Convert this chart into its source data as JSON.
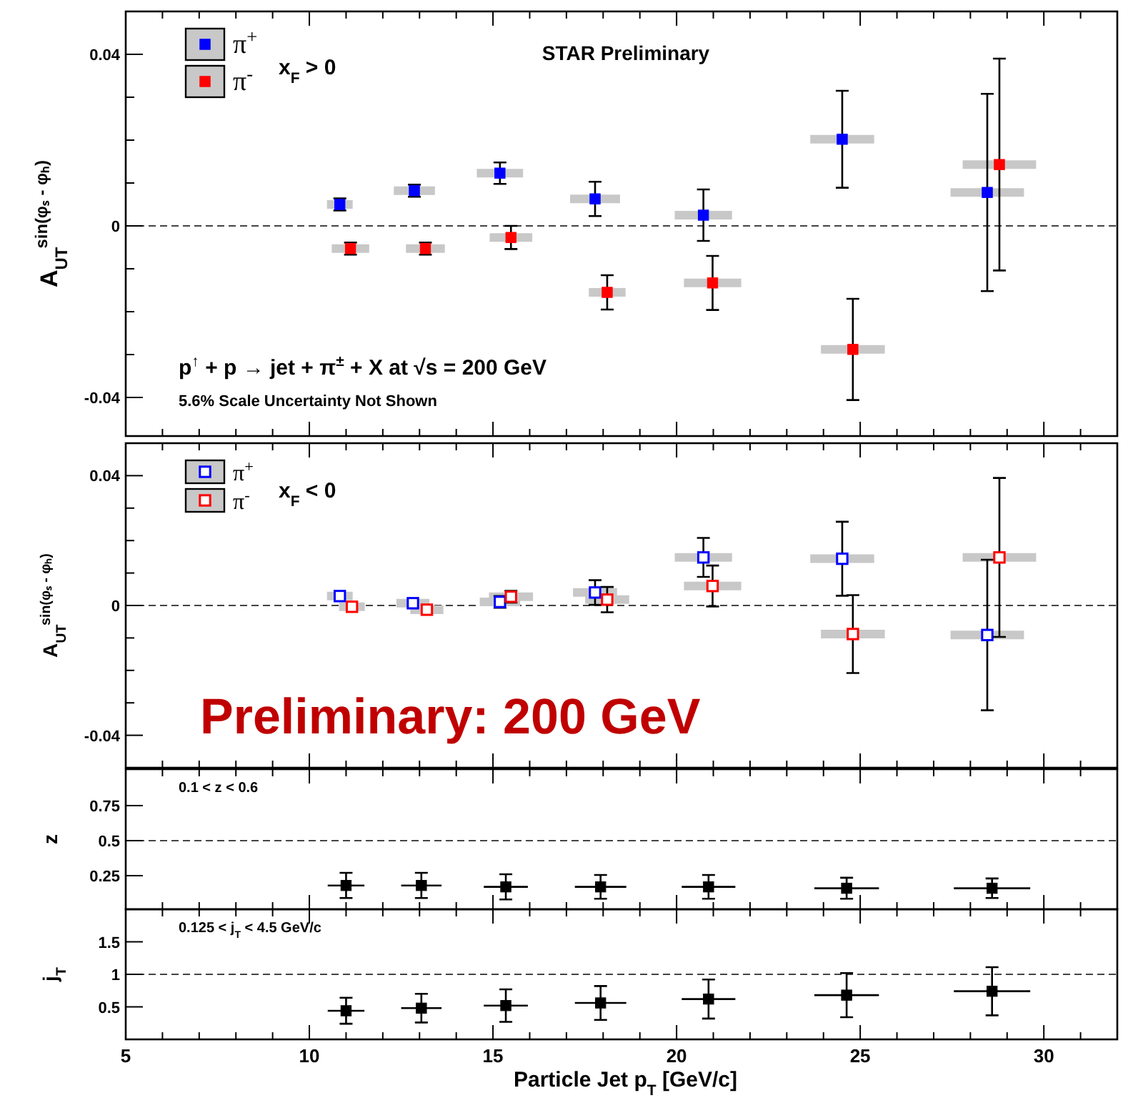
{
  "chart_data": [
    {
      "type": "scatter",
      "ylabel": "A$_{UT}$$^{sin(φₛ - φₕ)}$",
      "xlim": [
        5,
        32
      ],
      "xticks": [
        5,
        {
          "value": 6,
          "label": null
        },
        {
          "value": 7,
          "label": null
        },
        {
          "value": 8,
          "label": null
        },
        {
          "value": 9,
          "label": null
        },
        10,
        {
          "value": 11,
          "label": null
        },
        {
          "value": 12,
          "label": null
        },
        {
          "value": 13,
          "label": null
        },
        {
          "value": 14,
          "label": null
        },
        15,
        {
          "value": 16,
          "label": null
        },
        {
          "value": 17,
          "label": null
        },
        {
          "value": 18,
          "label": null
        },
        {
          "value": 19,
          "label": null
        },
        20,
        {
          "value": 21,
          "label": null
        },
        {
          "value": 22,
          "label": null
        },
        {
          "value": 23,
          "label": null
        },
        {
          "value": 24,
          "label": null
        },
        25,
        {
          "value": 26,
          "label": null
        },
        {
          "value": 27,
          "label": null
        },
        {
          "value": 28,
          "label": null
        },
        {
          "value": 29,
          "label": null
        },
        30,
        {
          "value": 31,
          "label": null
        }
      ],
      "ylim": [
        -0.049,
        0.05
      ],
      "yticks": [
        -0.04,
        {
          "value": -0.03,
          "label": null
        },
        {
          "value": -0.02,
          "label": null
        },
        {
          "value": -0.01,
          "label": null
        },
        0,
        {
          "value": 0.01,
          "label": null
        },
        {
          "value": 0.02,
          "label": null
        },
        {
          "value": 0.03,
          "label": null
        },
        0.04
      ],
      "tick_labels": "y",
      "marker": "square",
      "legend": "top left",
      "legend_title": "x$_{F}$ > 0",
      "ref_lines": [
        {
          "axis": "y",
          "value": 0,
          "line_style": "dashed"
        }
      ],
      "annotations": [
        "STAR Preliminary",
        "p$^{↑}$ + p → jet + π$^{±}$ + X at √s = 200 GeV",
        "5.6% Scale Uncertainty Not Shown"
      ],
      "series": [
        {
          "name": "π$^{+}$",
          "color": "#0000ff",
          "x": [
            10.83,
            12.86,
            15.19,
            17.78,
            20.73,
            24.51,
            28.46
          ],
          "values": [
            0.005,
            0.0082,
            0.0123,
            0.0063,
            0.0025,
            0.0202,
            0.0078
          ],
          "errors": [
            0.0014,
            0.0014,
            0.0025,
            0.004,
            0.006,
            0.0113,
            0.023
          ],
          "xerrors": [
            0.35,
            0.56,
            0.63,
            0.68,
            0.78,
            0.87,
            1.0
          ]
        },
        {
          "name": "π$^{-}$",
          "color": "#ff0000",
          "x": [
            11.12,
            13.16,
            15.49,
            18.11,
            20.98,
            24.8,
            28.79
          ],
          "values": [
            -0.0053,
            -0.0053,
            -0.0027,
            -0.0155,
            -0.0133,
            -0.0288,
            0.0143
          ],
          "errors": [
            0.0014,
            0.0014,
            0.0027,
            0.004,
            0.0063,
            0.0118,
            0.0247
          ],
          "xerrors": [
            0.51,
            0.53,
            0.58,
            0.5,
            0.78,
            0.87,
            1.0
          ]
        }
      ]
    },
    {
      "type": "scatter",
      "ylabel": "A$_{UT}$$^{sin(φₛ - φₕ)}$",
      "xlim": [
        5,
        32
      ],
      "xticks": [
        5,
        {
          "value": 6,
          "label": null
        },
        {
          "value": 7,
          "label": null
        },
        {
          "value": 8,
          "label": null
        },
        {
          "value": 9,
          "label": null
        },
        10,
        {
          "value": 11,
          "label": null
        },
        {
          "value": 12,
          "label": null
        },
        {
          "value": 13,
          "label": null
        },
        {
          "value": 14,
          "label": null
        },
        15,
        {
          "value": 16,
          "label": null
        },
        {
          "value": 17,
          "label": null
        },
        {
          "value": 18,
          "label": null
        },
        {
          "value": 19,
          "label": null
        },
        20,
        {
          "value": 21,
          "label": null
        },
        {
          "value": 22,
          "label": null
        },
        {
          "value": 23,
          "label": null
        },
        {
          "value": 24,
          "label": null
        },
        25,
        {
          "value": 26,
          "label": null
        },
        {
          "value": 27,
          "label": null
        },
        {
          "value": 28,
          "label": null
        },
        {
          "value": 29,
          "label": null
        },
        30,
        {
          "value": 31,
          "label": null
        }
      ],
      "ylim": [
        -0.05,
        0.05
      ],
      "yticks": [
        -0.04,
        {
          "value": -0.03,
          "label": null
        },
        {
          "value": -0.02,
          "label": null
        },
        {
          "value": -0.01,
          "label": null
        },
        0,
        {
          "value": 0.01,
          "label": null
        },
        {
          "value": 0.02,
          "label": null
        },
        {
          "value": 0.03,
          "label": null
        },
        0.04
      ],
      "tick_labels": "y",
      "marker": "square",
      "legend": "top left",
      "legend_title": "x$_{F}$ < 0",
      "ref_lines": [
        {
          "axis": "y",
          "value": 0,
          "line_style": "dashed"
        }
      ],
      "annotations": [
        "Preliminary: 200 GeV"
      ],
      "series": [
        {
          "name": "π$^{+}$",
          "color": "#0000ff",
          "x": [
            10.83,
            12.82,
            15.19,
            17.78,
            20.73,
            24.51,
            28.46
          ],
          "values": [
            0.0029,
            0.0007,
            0.0011,
            0.004,
            0.0148,
            0.0144,
            -0.0091
          ],
          "errors": [
            null,
            null,
            0.0018,
            0.0038,
            0.006,
            0.0114,
            0.0232
          ],
          "xerrors": [
            0.35,
            0.45,
            0.55,
            0.6,
            0.78,
            0.87,
            1.0
          ]
        },
        {
          "name": "π$^{-}$",
          "color": "#ff0000",
          "x": [
            11.16,
            13.2,
            15.49,
            18.11,
            20.98,
            24.8,
            28.79
          ],
          "values": [
            -0.0004,
            -0.0013,
            0.0027,
            0.0018,
            0.006,
            -0.0088,
            0.0148
          ],
          "errors": [
            null,
            null,
            0.0018,
            0.0039,
            0.0063,
            0.012,
            0.0245
          ],
          "xerrors": [
            0.35,
            0.45,
            0.6,
            0.6,
            0.78,
            0.87,
            1.0
          ]
        }
      ]
    },
    {
      "type": "scatter",
      "ylabel": "z",
      "xlim": [
        5,
        32
      ],
      "xticks": [
        5,
        {
          "value": 6,
          "label": null
        },
        {
          "value": 7,
          "label": null
        },
        {
          "value": 8,
          "label": null
        },
        {
          "value": 9,
          "label": null
        },
        10,
        {
          "value": 11,
          "label": null
        },
        {
          "value": 12,
          "label": null
        },
        {
          "value": 13,
          "label": null
        },
        {
          "value": 14,
          "label": null
        },
        15,
        {
          "value": 16,
          "label": null
        },
        {
          "value": 17,
          "label": null
        },
        {
          "value": 18,
          "label": null
        },
        {
          "value": 19,
          "label": null
        },
        20,
        {
          "value": 21,
          "label": null
        },
        {
          "value": 22,
          "label": null
        },
        {
          "value": 23,
          "label": null
        },
        {
          "value": 24,
          "label": null
        },
        25,
        {
          "value": 26,
          "label": null
        },
        {
          "value": 27,
          "label": null
        },
        {
          "value": 28,
          "label": null
        },
        {
          "value": 29,
          "label": null
        },
        30,
        {
          "value": 31,
          "label": null
        }
      ],
      "ylim": [
        0.01,
        1.01
      ],
      "yticks": [
        0.25,
        0.5,
        0.75
      ],
      "tick_labels": "y",
      "marker": "square",
      "ref_lines": [
        {
          "axis": "y",
          "value": 0.5,
          "line_style": "dashed"
        }
      ],
      "annotations": [
        "0.1 < z < 0.6"
      ],
      "series": [
        {
          "color": "#000000",
          "x": [
            11.0,
            13.05,
            15.35,
            17.93,
            20.87,
            24.63,
            28.59
          ],
          "values": [
            0.18,
            0.18,
            0.17,
            0.17,
            0.17,
            0.16,
            0.16
          ],
          "errors": [
            0.09,
            0.09,
            0.09,
            0.085,
            0.085,
            0.075,
            0.07
          ],
          "xerrors": [
            0.5,
            0.55,
            0.6,
            0.7,
            0.73,
            0.88,
            1.04
          ]
        }
      ]
    },
    {
      "type": "scatter",
      "ylabel": "j$_{T}$",
      "xlabel": "Particle Jet p$_{T}$ [GeV/c]",
      "xlim": [
        5,
        32
      ],
      "xticks": [
        5,
        {
          "value": 6,
          "label": null
        },
        {
          "value": 7,
          "label": null
        },
        {
          "value": 8,
          "label": null
        },
        {
          "value": 9,
          "label": null
        },
        10,
        {
          "value": 11,
          "label": null
        },
        {
          "value": 12,
          "label": null
        },
        {
          "value": 13,
          "label": null
        },
        {
          "value": 14,
          "label": null
        },
        15,
        {
          "value": 16,
          "label": null
        },
        {
          "value": 17,
          "label": null
        },
        {
          "value": 18,
          "label": null
        },
        {
          "value": 19,
          "label": null
        },
        20,
        {
          "value": 21,
          "label": null
        },
        {
          "value": 22,
          "label": null
        },
        {
          "value": 23,
          "label": null
        },
        {
          "value": 24,
          "label": null
        },
        25,
        {
          "value": 26,
          "label": null
        },
        {
          "value": 27,
          "label": null
        },
        {
          "value": 28,
          "label": null
        },
        {
          "value": 29,
          "label": null
        },
        30,
        {
          "value": 31,
          "label": null
        }
      ],
      "ylim": [
        0,
        2
      ],
      "yticks": [
        0.5,
        1,
        1.5
      ],
      "marker": "square",
      "ref_lines": [
        {
          "axis": "y",
          "value": 1,
          "line_style": "dashed"
        }
      ],
      "annotations": [
        "0.125 < j$_{T}$ < 4.5 GeV/c"
      ],
      "series": [
        {
          "color": "#000000",
          "x": [
            11.0,
            13.05,
            15.35,
            17.93,
            20.87,
            24.63,
            28.59
          ],
          "values": [
            0.44,
            0.48,
            0.52,
            0.56,
            0.62,
            0.68,
            0.74
          ],
          "errors": [
            0.2,
            0.22,
            0.25,
            0.26,
            0.3,
            0.34,
            0.37
          ],
          "xerrors": [
            0.5,
            0.55,
            0.6,
            0.7,
            0.73,
            0.88,
            1.04
          ]
        }
      ]
    }
  ]
}
